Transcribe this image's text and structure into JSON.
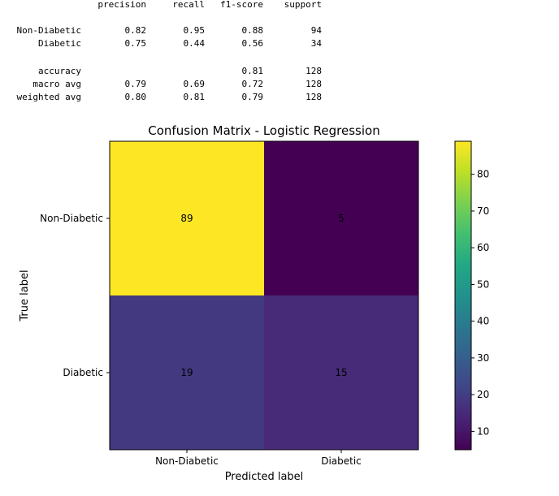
{
  "classification_report": {
    "headers": [
      "precision",
      "recall",
      "f1-score",
      "support"
    ],
    "class_rows": [
      {
        "label": "Non-Diabetic",
        "precision": "0.82",
        "recall": "0.95",
        "f1": "0.88",
        "support": "94"
      },
      {
        "label": "Diabetic",
        "precision": "0.75",
        "recall": "0.44",
        "f1": "0.56",
        "support": "34"
      }
    ],
    "accuracy_row": {
      "label": "accuracy",
      "precision": "",
      "recall": "",
      "f1": "0.81",
      "support": "128"
    },
    "avg_rows": [
      {
        "label": "macro avg",
        "precision": "0.79",
        "recall": "0.69",
        "f1": "0.72",
        "support": "128"
      },
      {
        "label": "weighted avg",
        "precision": "0.80",
        "recall": "0.81",
        "f1": "0.79",
        "support": "128"
      }
    ]
  },
  "chart_data": {
    "type": "heatmap",
    "title": "Confusion Matrix - Logistic Regression",
    "xlabel": "Predicted label",
    "ylabel": "True label",
    "x_categories": [
      "Non-Diabetic",
      "Diabetic"
    ],
    "y_categories": [
      "Non-Diabetic",
      "Diabetic"
    ],
    "values": [
      [
        89,
        5
      ],
      [
        19,
        15
      ]
    ],
    "colormap": "viridis",
    "colorbar": {
      "min": 5,
      "max": 89,
      "ticks": [
        10,
        20,
        30,
        40,
        50,
        60,
        70,
        80
      ]
    },
    "cell_label_colors": {
      "dark_bg": "#fde725",
      "light_bg": "#440154"
    }
  }
}
